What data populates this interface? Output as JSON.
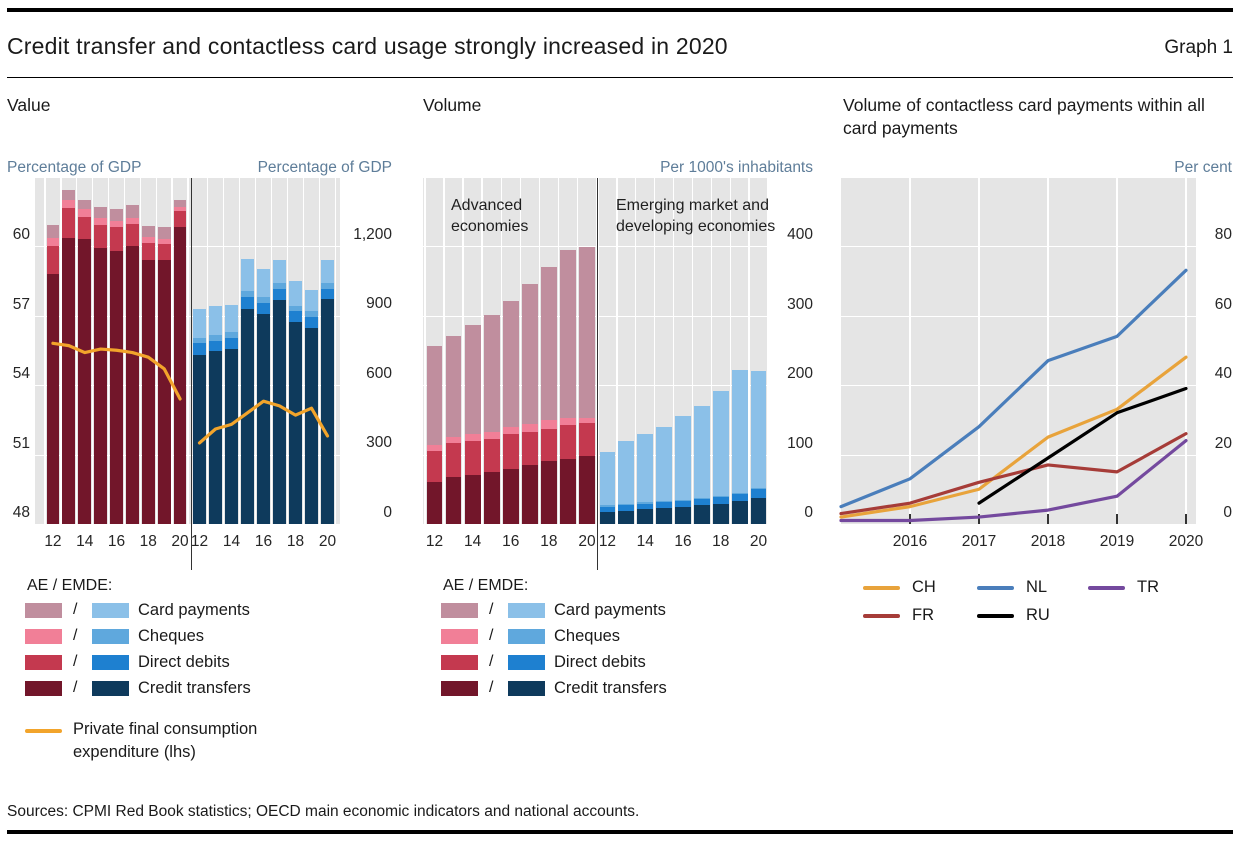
{
  "header": {
    "title": "Credit transfer and contactless card usage strongly increased in 2020",
    "graph_label": "Graph 1"
  },
  "footer": {
    "sources": "Sources: CPMI Red Book statistics; OECD main economic indicators and national accounts."
  },
  "colors": {
    "ae": {
      "card_payments": "#C08E9E",
      "cheques": "#F17F97",
      "direct_debits": "#C4394F",
      "credit_transfers": "#72162A"
    },
    "emde": {
      "card_payments": "#8BC0E8",
      "cheques": "#5FA8DD",
      "direct_debits": "#1E80D0",
      "credit_transfers": "#0E3A5C"
    },
    "pfce_line": "#F2A42B",
    "plot_bg": "#E5E5E5",
    "unit_label": "#5E7D99"
  },
  "chart_data": [
    {
      "id": "value",
      "type": "bar",
      "title": "Value",
      "unit_left": "Percentage of GDP",
      "unit_right": "Percentage of GDP",
      "left_axis": {
        "tick_labels": [
          "60",
          "57",
          "54",
          "51",
          "48"
        ],
        "tick_values": [
          60,
          57,
          54,
          51,
          48
        ],
        "min": 48,
        "gridline_step": 3
      },
      "right_axis": {
        "tick_labels": [
          "1,200",
          "900",
          "600",
          "300",
          "0"
        ],
        "tick_values": [
          1200,
          900,
          600,
          300,
          0
        ],
        "min": 0,
        "gridline_step": 300
      },
      "years": [
        2012,
        2013,
        2014,
        2015,
        2016,
        2017,
        2018,
        2019,
        2020
      ],
      "x_tick_labels": [
        "12",
        "14",
        "16",
        "18",
        "20"
      ],
      "groups": [
        {
          "key": "ae",
          "name": "Advanced economies (AE)",
          "axis": "left",
          "base": 48,
          "segments": {
            "credit_transfers": [
              10.8,
              12.35,
              12.3,
              11.9,
              11.8,
              12.0,
              11.4,
              11.4,
              12.8
            ],
            "direct_debits": [
              1.2,
              1.3,
              0.95,
              1.0,
              1.0,
              0.95,
              0.75,
              0.7,
              0.7
            ],
            "cheques": [
              0.35,
              0.35,
              0.35,
              0.3,
              0.3,
              0.25,
              0.25,
              0.2,
              0.2
            ],
            "card_payments": [
              0.55,
              0.4,
              0.4,
              0.5,
              0.5,
              0.55,
              0.45,
              0.5,
              0.3
            ]
          }
        },
        {
          "key": "emde",
          "name": "Emerging market and developing economies (EMDE)",
          "axis": "right",
          "base": 0,
          "segments": {
            "credit_transfers": [
              730,
              745,
              755,
              930,
              905,
              965,
              870,
              845,
              970
            ],
            "direct_debits": [
              50,
              47,
              50,
              50,
              50,
              50,
              48,
              48,
              45
            ],
            "cheques": [
              25,
              25,
              25,
              25,
              25,
              25,
              25,
              25,
              25
            ],
            "card_payments": [
              125,
              123,
              115,
              140,
              120,
              100,
              107,
              92,
              100
            ]
          }
        }
      ],
      "line": {
        "name": "Private final consumption expenditure (lhs)",
        "axis": "left",
        "ae": [
          55.8,
          55.7,
          55.4,
          55.55,
          55.5,
          55.4,
          55.2,
          54.7,
          53.4
        ],
        "emde": [
          51.5,
          52.1,
          52.3,
          52.8,
          53.3,
          53.1,
          52.7,
          53.0,
          51.8
        ]
      },
      "legend": {
        "heading": "AE / EMDE:",
        "slash": "/",
        "items": [
          "Card payments",
          "Cheques",
          "Direct debits",
          "Credit transfers"
        ],
        "item_keys": [
          "card_payments",
          "cheques",
          "direct_debits",
          "credit_transfers"
        ],
        "pfce_label": "Private final consumption expenditure (lhs)"
      }
    },
    {
      "id": "volume",
      "type": "bar",
      "title": "Volume",
      "unit_right": "Per 1000's inhabitants",
      "right_axis": {
        "tick_labels": [
          "400",
          "300",
          "200",
          "100",
          "0"
        ],
        "tick_values": [
          400,
          300,
          200,
          100,
          0
        ],
        "min": 0,
        "gridline_step": 100
      },
      "years": [
        2012,
        2013,
        2014,
        2015,
        2016,
        2017,
        2018,
        2019,
        2020
      ],
      "x_tick_labels": [
        "12",
        "14",
        "16",
        "18",
        "20"
      ],
      "group_labels": {
        "ae": "Advanced economies",
        "emde": "Emerging market and developing economies"
      },
      "groups": [
        {
          "key": "ae",
          "name": "Advanced economies (AE)",
          "axis": "right",
          "base": 0,
          "segments": {
            "credit_transfers": [
              61,
              67,
              71,
              75,
              79,
              85,
              90,
              94,
              98
            ],
            "direct_debits": [
              44,
              50,
              49,
              48,
              50,
              48,
              47,
              48,
              47
            ],
            "cheques": [
              8,
              8,
              9,
              10,
              10,
              11,
              12,
              11,
              7
            ],
            "card_payments": [
              143,
              145,
              158,
              168,
              182,
              201,
              221,
              241,
              247
            ]
          }
        },
        {
          "key": "emde",
          "name": "Emerging market and developing economies (EMDE)",
          "axis": "right",
          "base": 0,
          "segments": {
            "credit_transfers": [
              17,
              19,
              21,
              23,
              25,
              27,
              29,
              33,
              38
            ],
            "direct_debits": [
              8,
              8,
              8,
              8,
              8,
              9,
              10,
              10,
              12
            ],
            "cheques": [
              2,
              2,
              2,
              2,
              2,
              2,
              2,
              2,
              2
            ],
            "card_payments": [
              77,
              90,
              99,
              107,
              120,
              132,
              151,
              177,
              168
            ]
          }
        }
      ],
      "legend": {
        "heading": "AE / EMDE:",
        "slash": "/",
        "items": [
          "Card payments",
          "Cheques",
          "Direct debits",
          "Credit transfers"
        ],
        "item_keys": [
          "card_payments",
          "cheques",
          "direct_debits",
          "credit_transfers"
        ]
      }
    },
    {
      "id": "contactless",
      "type": "line",
      "title": "Volume of contactless card payments within all card payments",
      "unit_right": "Per cent",
      "right_axis": {
        "tick_labels": [
          "80",
          "60",
          "40",
          "20",
          "0"
        ],
        "tick_values": [
          80,
          60,
          40,
          20,
          0
        ],
        "min": 0,
        "gridline_step": 20
      },
      "x": [
        2015,
        2016,
        2017,
        2018,
        2019,
        2020
      ],
      "x_tick_labels": [
        "2016",
        "2017",
        "2018",
        "2019",
        "2020"
      ],
      "series": [
        {
          "name": "CH",
          "color": "#E8A33B",
          "values": [
            2,
            5,
            10,
            25,
            33,
            48
          ]
        },
        {
          "name": "FR",
          "color": "#A63C38",
          "values": [
            3,
            6,
            12,
            17,
            15,
            26
          ]
        },
        {
          "name": "NL",
          "color": "#4A7EBB",
          "values": [
            5,
            13,
            28,
            47,
            54,
            73
          ]
        },
        {
          "name": "RU",
          "color": "#000000",
          "values": [
            null,
            null,
            6,
            19,
            32,
            39
          ]
        },
        {
          "name": "TR",
          "color": "#74499E",
          "values": [
            1,
            1,
            2,
            4,
            8,
            24
          ]
        }
      ],
      "legend_columns": [
        [
          "CH",
          "FR"
        ],
        [
          "NL",
          "RU"
        ],
        [
          "TR"
        ]
      ]
    }
  ]
}
